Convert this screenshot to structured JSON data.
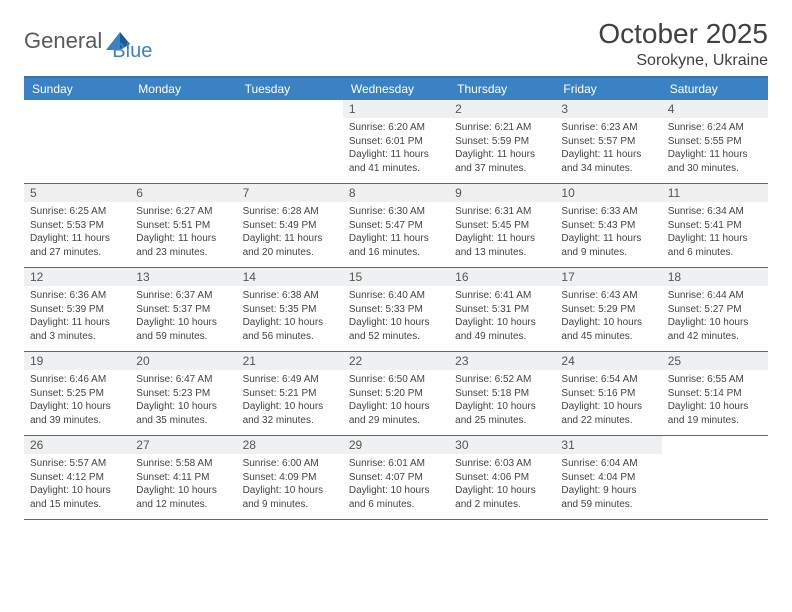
{
  "brand": {
    "part1": "General",
    "part2": "Blue"
  },
  "title": "October 2025",
  "location": "Sorokyne, Ukraine",
  "colors": {
    "header_bg": "#3b82c4",
    "border": "#3b73a8",
    "daynum_bg": "#eef0f1",
    "text": "#333333",
    "white": "#ffffff"
  },
  "dayNames": [
    "Sunday",
    "Monday",
    "Tuesday",
    "Wednesday",
    "Thursday",
    "Friday",
    "Saturday"
  ],
  "weeks": [
    [
      null,
      null,
      null,
      {
        "n": "1",
        "sr": "6:20 AM",
        "ss": "6:01 PM",
        "dl": "11 hours and 41 minutes."
      },
      {
        "n": "2",
        "sr": "6:21 AM",
        "ss": "5:59 PM",
        "dl": "11 hours and 37 minutes."
      },
      {
        "n": "3",
        "sr": "6:23 AM",
        "ss": "5:57 PM",
        "dl": "11 hours and 34 minutes."
      },
      {
        "n": "4",
        "sr": "6:24 AM",
        "ss": "5:55 PM",
        "dl": "11 hours and 30 minutes."
      }
    ],
    [
      {
        "n": "5",
        "sr": "6:25 AM",
        "ss": "5:53 PM",
        "dl": "11 hours and 27 minutes."
      },
      {
        "n": "6",
        "sr": "6:27 AM",
        "ss": "5:51 PM",
        "dl": "11 hours and 23 minutes."
      },
      {
        "n": "7",
        "sr": "6:28 AM",
        "ss": "5:49 PM",
        "dl": "11 hours and 20 minutes."
      },
      {
        "n": "8",
        "sr": "6:30 AM",
        "ss": "5:47 PM",
        "dl": "11 hours and 16 minutes."
      },
      {
        "n": "9",
        "sr": "6:31 AM",
        "ss": "5:45 PM",
        "dl": "11 hours and 13 minutes."
      },
      {
        "n": "10",
        "sr": "6:33 AM",
        "ss": "5:43 PM",
        "dl": "11 hours and 9 minutes."
      },
      {
        "n": "11",
        "sr": "6:34 AM",
        "ss": "5:41 PM",
        "dl": "11 hours and 6 minutes."
      }
    ],
    [
      {
        "n": "12",
        "sr": "6:36 AM",
        "ss": "5:39 PM",
        "dl": "11 hours and 3 minutes."
      },
      {
        "n": "13",
        "sr": "6:37 AM",
        "ss": "5:37 PM",
        "dl": "10 hours and 59 minutes."
      },
      {
        "n": "14",
        "sr": "6:38 AM",
        "ss": "5:35 PM",
        "dl": "10 hours and 56 minutes."
      },
      {
        "n": "15",
        "sr": "6:40 AM",
        "ss": "5:33 PM",
        "dl": "10 hours and 52 minutes."
      },
      {
        "n": "16",
        "sr": "6:41 AM",
        "ss": "5:31 PM",
        "dl": "10 hours and 49 minutes."
      },
      {
        "n": "17",
        "sr": "6:43 AM",
        "ss": "5:29 PM",
        "dl": "10 hours and 45 minutes."
      },
      {
        "n": "18",
        "sr": "6:44 AM",
        "ss": "5:27 PM",
        "dl": "10 hours and 42 minutes."
      }
    ],
    [
      {
        "n": "19",
        "sr": "6:46 AM",
        "ss": "5:25 PM",
        "dl": "10 hours and 39 minutes."
      },
      {
        "n": "20",
        "sr": "6:47 AM",
        "ss": "5:23 PM",
        "dl": "10 hours and 35 minutes."
      },
      {
        "n": "21",
        "sr": "6:49 AM",
        "ss": "5:21 PM",
        "dl": "10 hours and 32 minutes."
      },
      {
        "n": "22",
        "sr": "6:50 AM",
        "ss": "5:20 PM",
        "dl": "10 hours and 29 minutes."
      },
      {
        "n": "23",
        "sr": "6:52 AM",
        "ss": "5:18 PM",
        "dl": "10 hours and 25 minutes."
      },
      {
        "n": "24",
        "sr": "6:54 AM",
        "ss": "5:16 PM",
        "dl": "10 hours and 22 minutes."
      },
      {
        "n": "25",
        "sr": "6:55 AM",
        "ss": "5:14 PM",
        "dl": "10 hours and 19 minutes."
      }
    ],
    [
      {
        "n": "26",
        "sr": "5:57 AM",
        "ss": "4:12 PM",
        "dl": "10 hours and 15 minutes."
      },
      {
        "n": "27",
        "sr": "5:58 AM",
        "ss": "4:11 PM",
        "dl": "10 hours and 12 minutes."
      },
      {
        "n": "28",
        "sr": "6:00 AM",
        "ss": "4:09 PM",
        "dl": "10 hours and 9 minutes."
      },
      {
        "n": "29",
        "sr": "6:01 AM",
        "ss": "4:07 PM",
        "dl": "10 hours and 6 minutes."
      },
      {
        "n": "30",
        "sr": "6:03 AM",
        "ss": "4:06 PM",
        "dl": "10 hours and 2 minutes."
      },
      {
        "n": "31",
        "sr": "6:04 AM",
        "ss": "4:04 PM",
        "dl": "9 hours and 59 minutes."
      },
      null
    ]
  ],
  "labels": {
    "sunrise": "Sunrise: ",
    "sunset": "Sunset: ",
    "daylight": "Daylight: "
  }
}
